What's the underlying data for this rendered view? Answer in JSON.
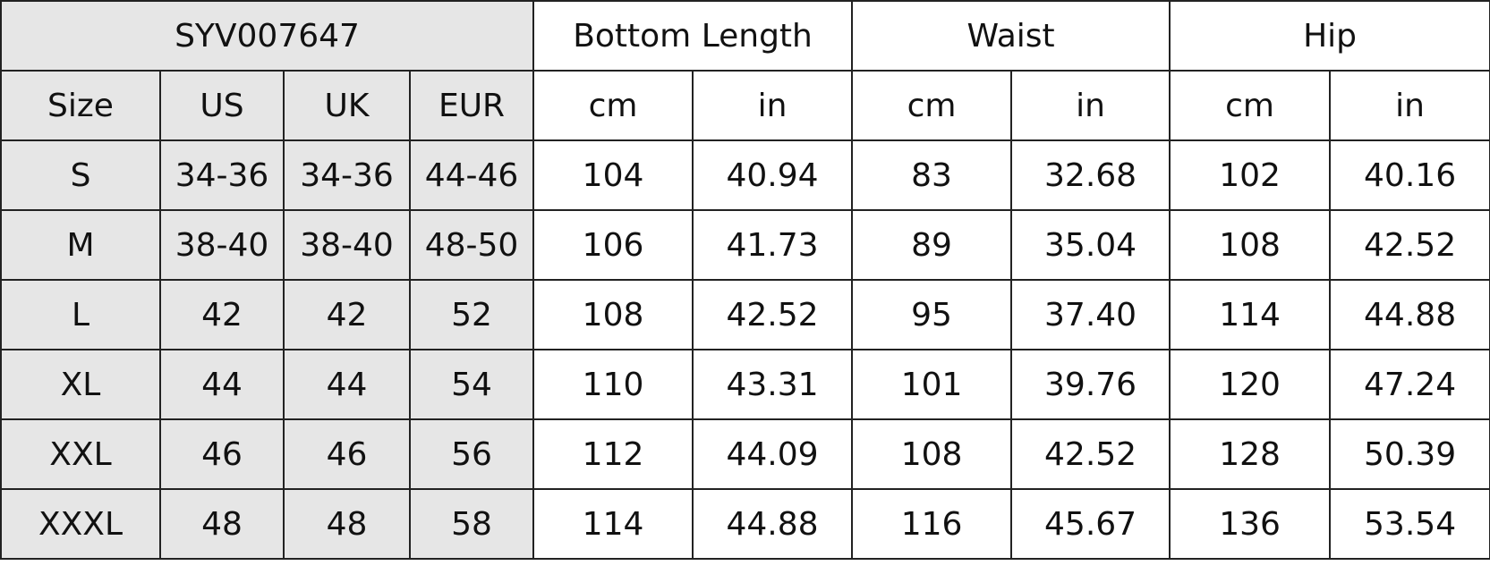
{
  "header": {
    "product_code": "SYV007647",
    "groups": [
      "Bottom Length",
      "Waist",
      "Hip"
    ],
    "size_columns": [
      "Size",
      "US",
      "UK",
      "EUR"
    ],
    "unit_columns": [
      "cm",
      "in",
      "cm",
      "in",
      "cm",
      "in"
    ]
  },
  "colors": {
    "size_columns_background": "#e6e6e6",
    "border": "#222222"
  },
  "rows": [
    {
      "size": "S",
      "us": "34-36",
      "uk": "34-36",
      "eur": "44-46",
      "length_cm": "104",
      "length_in": "40.94",
      "waist_cm": "83",
      "waist_in": "32.68",
      "hip_cm": "102",
      "hip_in": "40.16"
    },
    {
      "size": "M",
      "us": "38-40",
      "uk": "38-40",
      "eur": "48-50",
      "length_cm": "106",
      "length_in": "41.73",
      "waist_cm": "89",
      "waist_in": "35.04",
      "hip_cm": "108",
      "hip_in": "42.52"
    },
    {
      "size": "L",
      "us": "42",
      "uk": "42",
      "eur": "52",
      "length_cm": "108",
      "length_in": "42.52",
      "waist_cm": "95",
      "waist_in": "37.40",
      "hip_cm": "114",
      "hip_in": "44.88"
    },
    {
      "size": "XL",
      "us": "44",
      "uk": "44",
      "eur": "54",
      "length_cm": "110",
      "length_in": "43.31",
      "waist_cm": "101",
      "waist_in": "39.76",
      "hip_cm": "120",
      "hip_in": "47.24"
    },
    {
      "size": "XXL",
      "us": "46",
      "uk": "46",
      "eur": "56",
      "length_cm": "112",
      "length_in": "44.09",
      "waist_cm": "108",
      "waist_in": "42.52",
      "hip_cm": "128",
      "hip_in": "50.39"
    },
    {
      "size": "XXXL",
      "us": "48",
      "uk": "48",
      "eur": "58",
      "length_cm": "114",
      "length_in": "44.88",
      "waist_cm": "116",
      "waist_in": "45.67",
      "hip_cm": "136",
      "hip_in": "53.54"
    }
  ]
}
